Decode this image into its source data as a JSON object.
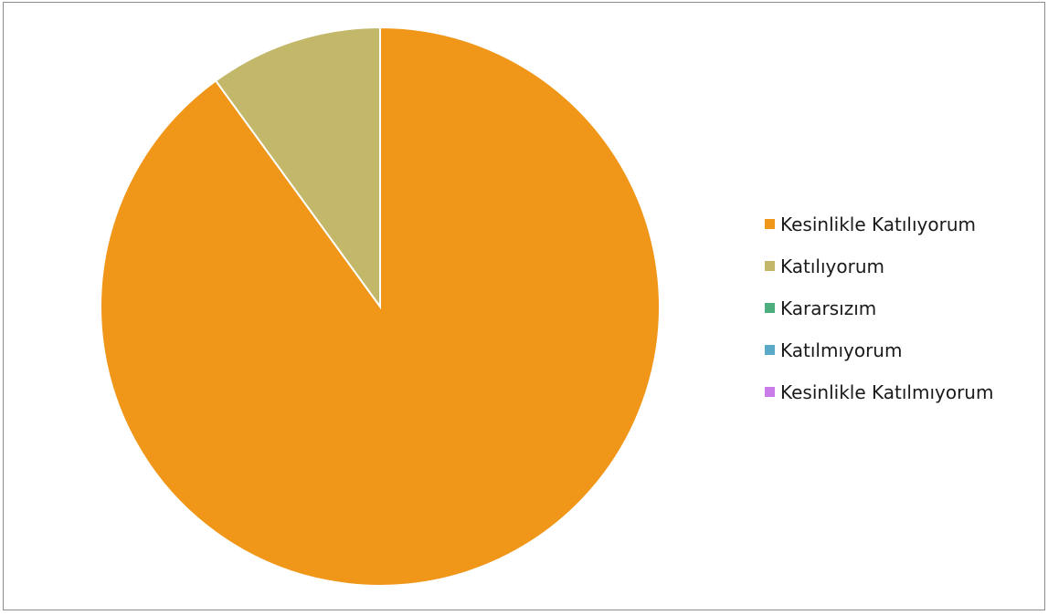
{
  "chart_data": {
    "type": "pie",
    "title": "",
    "slices": [
      {
        "label": "Kesinlikle Katılıyorum",
        "value": 90,
        "color": "#f09618"
      },
      {
        "label": "Katılıyorum",
        "value": 10,
        "color": "#c3b76a"
      },
      {
        "label": "Kararsızım",
        "value": 0,
        "color": "#4caf7d"
      },
      {
        "label": "Katılmıyorum",
        "value": 0,
        "color": "#5aa9c7"
      },
      {
        "label": "Kesinlikle Katılmıyorum",
        "value": 0,
        "color": "#c97be8"
      }
    ],
    "legend_position": "right",
    "start_angle": "top",
    "direction": "clockwise",
    "slice_border_color": "#ffffff"
  }
}
